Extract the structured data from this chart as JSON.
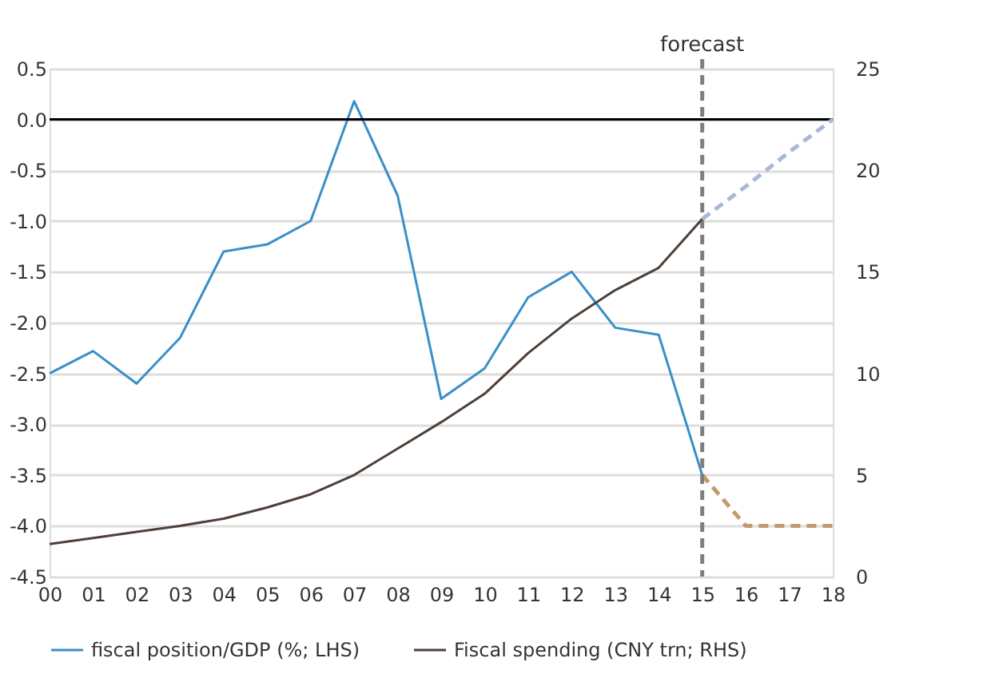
{
  "chart_data": {
    "type": "line",
    "categories": [
      "00",
      "01",
      "02",
      "03",
      "04",
      "05",
      "06",
      "07",
      "08",
      "09",
      "10",
      "11",
      "12",
      "13",
      "14",
      "15",
      "16",
      "17",
      "18"
    ],
    "series": [
      {
        "name": "fiscal position/GDP (%; LHS)",
        "color": "#3a8fc8",
        "values": [
          -2.5,
          -2.28,
          -2.6,
          -2.15,
          -1.3,
          -1.23,
          -1.0,
          0.18,
          -0.75,
          -2.75,
          -2.45,
          -1.75,
          -1.5,
          -2.05,
          -2.12,
          -3.5,
          null,
          null,
          null
        ]
      },
      {
        "name": "Fiscal spending (CNY trn; RHS)",
        "color": "#4e3f38",
        "axis": "y2",
        "values": [
          1.6,
          1.9,
          2.2,
          2.5,
          2.85,
          3.4,
          4.05,
          5.0,
          6.3,
          7.6,
          9.0,
          11.0,
          12.7,
          14.1,
          15.2,
          17.6,
          null,
          null,
          null
        ]
      },
      {
        "color": "#c49a6c",
        "line_style": "dashed",
        "values": [
          null,
          null,
          null,
          null,
          null,
          null,
          null,
          null,
          null,
          null,
          null,
          null,
          null,
          null,
          null,
          -3.5,
          -4.0,
          -4.0,
          -4.0
        ]
      },
      {
        "color": "#a9b8d8",
        "line_style": "dashed",
        "axis": "y2",
        "values": [
          null,
          null,
          null,
          null,
          null,
          null,
          null,
          null,
          null,
          null,
          null,
          null,
          null,
          null,
          null,
          17.6,
          19.2,
          20.9,
          22.5
        ]
      }
    ],
    "ylim": [
      -4.5,
      0.5
    ],
    "yticks": [
      -4.5,
      {
        "value": -4,
        "label": "-4.0"
      },
      -3.5,
      {
        "value": -3,
        "label": "-3.0"
      },
      -2.5,
      {
        "value": -2,
        "label": "-2.0"
      },
      -1.5,
      {
        "value": -1,
        "label": "-1.0"
      },
      -0.5,
      {
        "value": 0,
        "label": "0.0"
      },
      0.5
    ],
    "y2lim": [
      0,
      25
    ],
    "y2ticks": [
      0,
      5,
      10,
      15,
      20,
      25
    ],
    "ref_lines": [
      {
        "axis": "y",
        "value": 0,
        "color": "#000000",
        "line_style": "solid"
      },
      {
        "axis": "x",
        "value": "15",
        "label": "forecast",
        "color": "#7f7f7f",
        "line_style": "dashed"
      }
    ],
    "grid": "y",
    "legend": "bottom",
    "line_style": "solid"
  }
}
